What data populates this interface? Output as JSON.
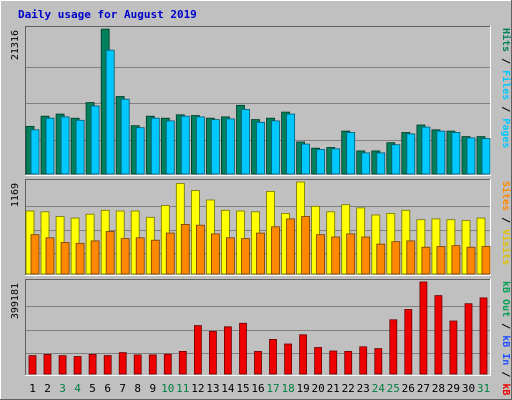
{
  "chart_data": {
    "type": "bar",
    "title": "Daily usage for August 2019",
    "colors": {
      "hits": "#00805c",
      "files": "#00c8ff",
      "pages": "#00c8ff",
      "visits": "#ffff00",
      "sites": "#ff8800",
      "kbin": "#2050ff",
      "kbout": "#00a050",
      "kbf": "#ee0000",
      "weekend": "#008040",
      "weekday": "#000000",
      "panel": "#c0c0c0",
      "grid": "#808080"
    },
    "days": [
      "1",
      "2",
      "3",
      "4",
      "5",
      "6",
      "7",
      "8",
      "9",
      "10",
      "11",
      "12",
      "13",
      "14",
      "15",
      "16",
      "17",
      "18",
      "19",
      "20",
      "21",
      "22",
      "23",
      "24",
      "25",
      "26",
      "27",
      "28",
      "29",
      "30",
      "31"
    ],
    "weekend_days": [
      "3",
      "4",
      "10",
      "11",
      "17",
      "18",
      "24",
      "25",
      "31"
    ],
    "panels": [
      {
        "id": "hits",
        "axis_max_label": "21316",
        "ylim": [
          0,
          21316
        ],
        "legend": [
          {
            "text": "Pages",
            "color": "#00c8ff"
          },
          {
            "text": "Files",
            "color": "#00c8ff"
          },
          {
            "text": "Hits",
            "color": "#00805c"
          }
        ],
        "series": [
          {
            "name": "Hits",
            "color": "#00805c",
            "values": [
              7000,
              8500,
              8800,
              8200,
              10500,
              21300,
              11400,
              7100,
              8500,
              8200,
              8700,
              8600,
              8200,
              8400,
              10100,
              8000,
              8200,
              9100,
              4700,
              3800,
              3900,
              6300,
              3400,
              3400,
              4600,
              6100,
              7200,
              6500,
              6300,
              5500,
              5500
            ]
          },
          {
            "name": "Files",
            "color": "#00c8ff",
            "values": [
              6500,
              8200,
              8400,
              7900,
              10000,
              18200,
              11000,
              6800,
              8200,
              7800,
              8500,
              8400,
              8000,
              8100,
              9500,
              7600,
              7800,
              8800,
              4400,
              3600,
              3700,
              6100,
              3100,
              3100,
              4300,
              5900,
              6900,
              6300,
              6100,
              5300,
              5200
            ]
          }
        ]
      },
      {
        "id": "visits",
        "axis_max_label": "1169",
        "ylim": [
          0,
          1169
        ],
        "legend": [
          {
            "text": "Visits",
            "color": "#e0c000"
          },
          {
            "text": "Sites",
            "color": "#ff8800"
          }
        ],
        "series": [
          {
            "name": "Visits",
            "color": "#ffff00",
            "values": [
              800,
              790,
              730,
              710,
              760,
              810,
              800,
              800,
              720,
              870,
              1150,
              1060,
              940,
              810,
              800,
              790,
              1050,
              770,
              1170,
              860,
              790,
              880,
              840,
              750,
              770,
              810,
              690,
              700,
              690,
              680,
              710
            ]
          },
          {
            "name": "Sites",
            "color": "#ff8800",
            "values": [
              500,
              460,
              400,
              390,
              420,
              540,
              450,
              460,
              430,
              520,
              630,
              620,
              510,
              460,
              450,
              520,
              600,
              700,
              730,
              500,
              470,
              510,
              470,
              380,
              410,
              420,
              340,
              350,
              360,
              340,
              350
            ]
          }
        ]
      },
      {
        "id": "kbf",
        "axis_max_label": "399181",
        "ylim": [
          0,
          399181
        ],
        "legend": [
          {
            "text": "kB F",
            "color": "#ee0000"
          },
          {
            "text": "kB In",
            "color": "#2050ff"
          },
          {
            "text": "kB Out",
            "color": "#00a050"
          }
        ],
        "series": [
          {
            "name": "kB F",
            "color": "#ee0000",
            "values": [
              80000,
              85000,
              80000,
              76000,
              85000,
              80000,
              93000,
              83000,
              83000,
              86000,
              98000,
              210000,
              185000,
              205000,
              220000,
              98000,
              150000,
              130000,
              170000,
              115000,
              100000,
              98000,
              118000,
              110000,
              235000,
              280000,
              400000,
              340000,
              230000,
              305000,
              330000
            ]
          }
        ]
      }
    ]
  }
}
